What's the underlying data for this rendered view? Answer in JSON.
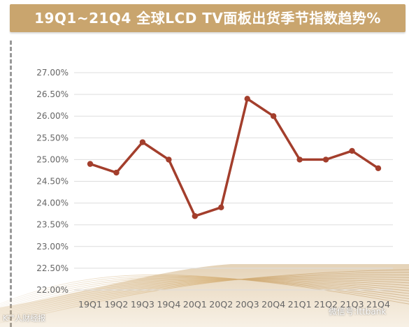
{
  "header": {
    "title": "19Q1~21Q4 全球LCD TV面板出货季节指数趋势%"
  },
  "watermarks": {
    "left": "K²°人财经报",
    "right": "微信号:lttbank"
  },
  "colors": {
    "title_bg": "#c9a56e",
    "line": "#a33e2c",
    "grid": "#dddddd",
    "tick_text": "#666666"
  },
  "chart_data": {
    "type": "line",
    "title": "19Q1~21Q4 全球LCD TV面板出货季节指数趋势%",
    "xlabel": "",
    "ylabel": "",
    "categories": [
      "19Q1",
      "19Q2",
      "19Q3",
      "19Q4",
      "20Q1",
      "20Q2",
      "20Q3",
      "20Q4",
      "21Q1",
      "21Q2",
      "21Q3",
      "21Q4"
    ],
    "series": [
      {
        "values": [
          24.9,
          24.7,
          25.4,
          25.0,
          23.7,
          23.9,
          26.4,
          26.0,
          25.0,
          25.0,
          25.2,
          24.8
        ]
      }
    ],
    "ylim": [
      22.0,
      27.0
    ],
    "yticks": [
      22.0,
      22.5,
      23.0,
      23.5,
      24.0,
      24.5,
      25.0,
      25.5,
      26.0,
      26.5,
      27.0
    ],
    "ytick_labels": [
      "22.00%",
      "22.50%",
      "23.00%",
      "23.50%",
      "24.00%",
      "24.50%",
      "25.00%",
      "25.50%",
      "26.00%",
      "26.50%",
      "27.00%"
    ],
    "grid": true,
    "legend": "none"
  }
}
